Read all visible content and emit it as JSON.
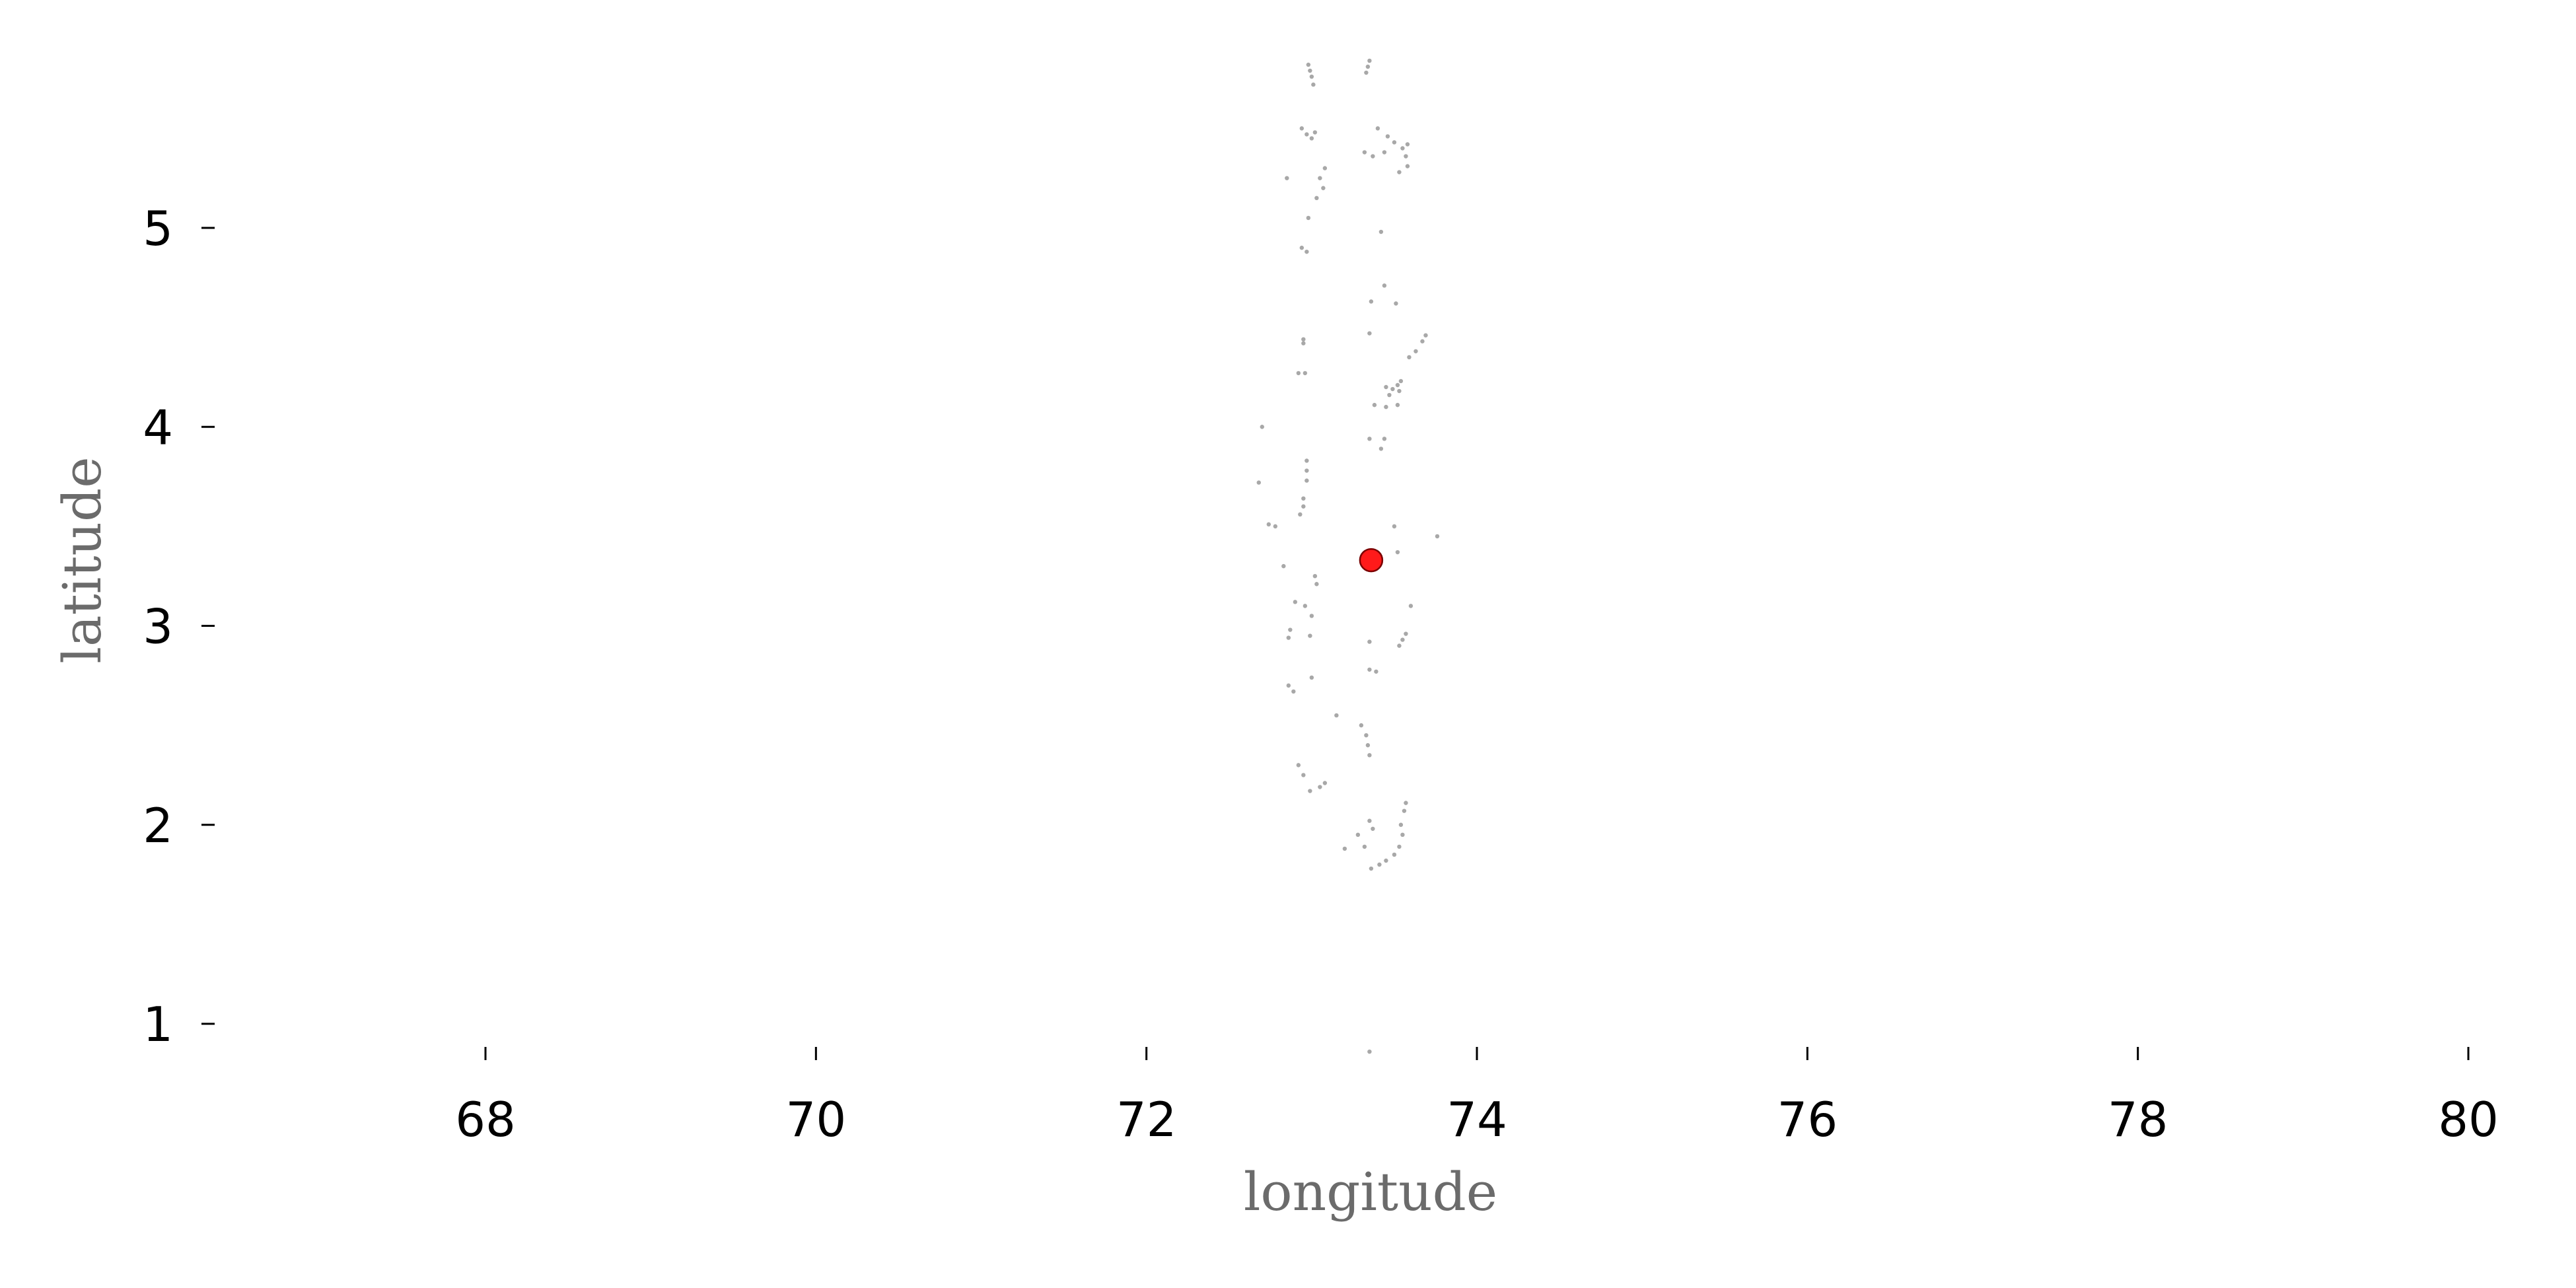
{
  "chart_data": {
    "type": "scatter",
    "xlabel": "longitude",
    "ylabel": "latitude",
    "xlim": [
      66.4,
      80.2
    ],
    "ylim": [
      0.83,
      5.85
    ],
    "x_ticks": [
      68,
      70,
      72,
      74,
      76,
      78,
      80
    ],
    "x_tick_labels": [
      "68",
      "70",
      "72",
      "74",
      "76",
      "78",
      "80"
    ],
    "y_ticks": [
      1,
      2,
      3,
      4,
      5
    ],
    "y_tick_labels": [
      "1",
      "2",
      "3",
      "4",
      "5"
    ],
    "grid": false,
    "frame": false,
    "colors": {
      "islands": "#a8a8a8",
      "marker": "#ff1a1a",
      "marker_edge": "#7a0000"
    },
    "marker": {
      "x": 73.36,
      "y": 3.33
    },
    "islands": [
      [
        72.98,
        5.82
      ],
      [
        72.99,
        5.79
      ],
      [
        73.0,
        5.76
      ],
      [
        73.01,
        5.72
      ],
      [
        73.35,
        5.84
      ],
      [
        73.34,
        5.81
      ],
      [
        73.33,
        5.78
      ],
      [
        72.94,
        5.5
      ],
      [
        72.97,
        5.47
      ],
      [
        73.0,
        5.45
      ],
      [
        73.02,
        5.48
      ],
      [
        73.4,
        5.5
      ],
      [
        73.46,
        5.46
      ],
      [
        73.5,
        5.43
      ],
      [
        73.55,
        5.4
      ],
      [
        73.57,
        5.36
      ],
      [
        73.58,
        5.42
      ],
      [
        73.53,
        5.28
      ],
      [
        73.58,
        5.31
      ],
      [
        73.32,
        5.38
      ],
      [
        73.37,
        5.36
      ],
      [
        73.44,
        5.38
      ],
      [
        72.85,
        5.25
      ],
      [
        73.05,
        5.25
      ],
      [
        73.08,
        5.3
      ],
      [
        73.07,
        5.2
      ],
      [
        73.03,
        5.15
      ],
      [
        72.98,
        5.05
      ],
      [
        72.94,
        4.9
      ],
      [
        72.97,
        4.88
      ],
      [
        73.42,
        4.98
      ],
      [
        73.44,
        4.71
      ],
      [
        73.36,
        4.63
      ],
      [
        73.51,
        4.62
      ],
      [
        73.69,
        4.46
      ],
      [
        73.67,
        4.43
      ],
      [
        73.63,
        4.38
      ],
      [
        73.59,
        4.35
      ],
      [
        73.35,
        4.47
      ],
      [
        72.95,
        4.44
      ],
      [
        72.95,
        4.42
      ],
      [
        72.92,
        4.27
      ],
      [
        72.96,
        4.27
      ],
      [
        73.45,
        4.2
      ],
      [
        73.49,
        4.19
      ],
      [
        73.52,
        4.21
      ],
      [
        73.54,
        4.23
      ],
      [
        73.53,
        4.18
      ],
      [
        73.47,
        4.16
      ],
      [
        73.38,
        4.11
      ],
      [
        73.45,
        4.1
      ],
      [
        73.52,
        4.11
      ],
      [
        72.7,
        4.0
      ],
      [
        73.35,
        3.94
      ],
      [
        73.44,
        3.94
      ],
      [
        73.42,
        3.89
      ],
      [
        72.97,
        3.83
      ],
      [
        72.97,
        3.78
      ],
      [
        72.97,
        3.73
      ],
      [
        72.68,
        3.72
      ],
      [
        72.74,
        3.51
      ],
      [
        72.78,
        3.5
      ],
      [
        72.93,
        3.56
      ],
      [
        72.95,
        3.6
      ],
      [
        72.95,
        3.64
      ],
      [
        73.5,
        3.5
      ],
      [
        73.76,
        3.45
      ],
      [
        73.52,
        3.37
      ],
      [
        72.83,
        3.3
      ],
      [
        73.02,
        3.25
      ],
      [
        73.03,
        3.21
      ],
      [
        72.9,
        3.12
      ],
      [
        72.96,
        3.1
      ],
      [
        73.0,
        3.05
      ],
      [
        72.87,
        2.98
      ],
      [
        72.86,
        2.94
      ],
      [
        72.99,
        2.95
      ],
      [
        73.6,
        3.1
      ],
      [
        73.57,
        2.96
      ],
      [
        73.55,
        2.93
      ],
      [
        73.53,
        2.9
      ],
      [
        73.35,
        2.92
      ],
      [
        73.35,
        2.78
      ],
      [
        73.39,
        2.77
      ],
      [
        73.0,
        2.74
      ],
      [
        72.86,
        2.7
      ],
      [
        72.89,
        2.67
      ],
      [
        73.15,
        2.55
      ],
      [
        73.3,
        2.5
      ],
      [
        73.33,
        2.45
      ],
      [
        73.34,
        2.4
      ],
      [
        73.35,
        2.35
      ],
      [
        72.92,
        2.3
      ],
      [
        72.95,
        2.25
      ],
      [
        72.99,
        2.17
      ],
      [
        73.05,
        2.19
      ],
      [
        73.08,
        2.21
      ],
      [
        73.57,
        2.11
      ],
      [
        73.56,
        2.07
      ],
      [
        73.54,
        2.0
      ],
      [
        73.55,
        1.95
      ],
      [
        73.53,
        1.89
      ],
      [
        73.5,
        1.85
      ],
      [
        73.45,
        1.82
      ],
      [
        73.41,
        1.8
      ],
      [
        73.36,
        1.78
      ],
      [
        73.28,
        1.95
      ],
      [
        73.35,
        2.02
      ],
      [
        73.37,
        1.98
      ],
      [
        73.32,
        1.89
      ],
      [
        73.2,
        1.88
      ],
      [
        73.35,
        0.86
      ]
    ]
  }
}
